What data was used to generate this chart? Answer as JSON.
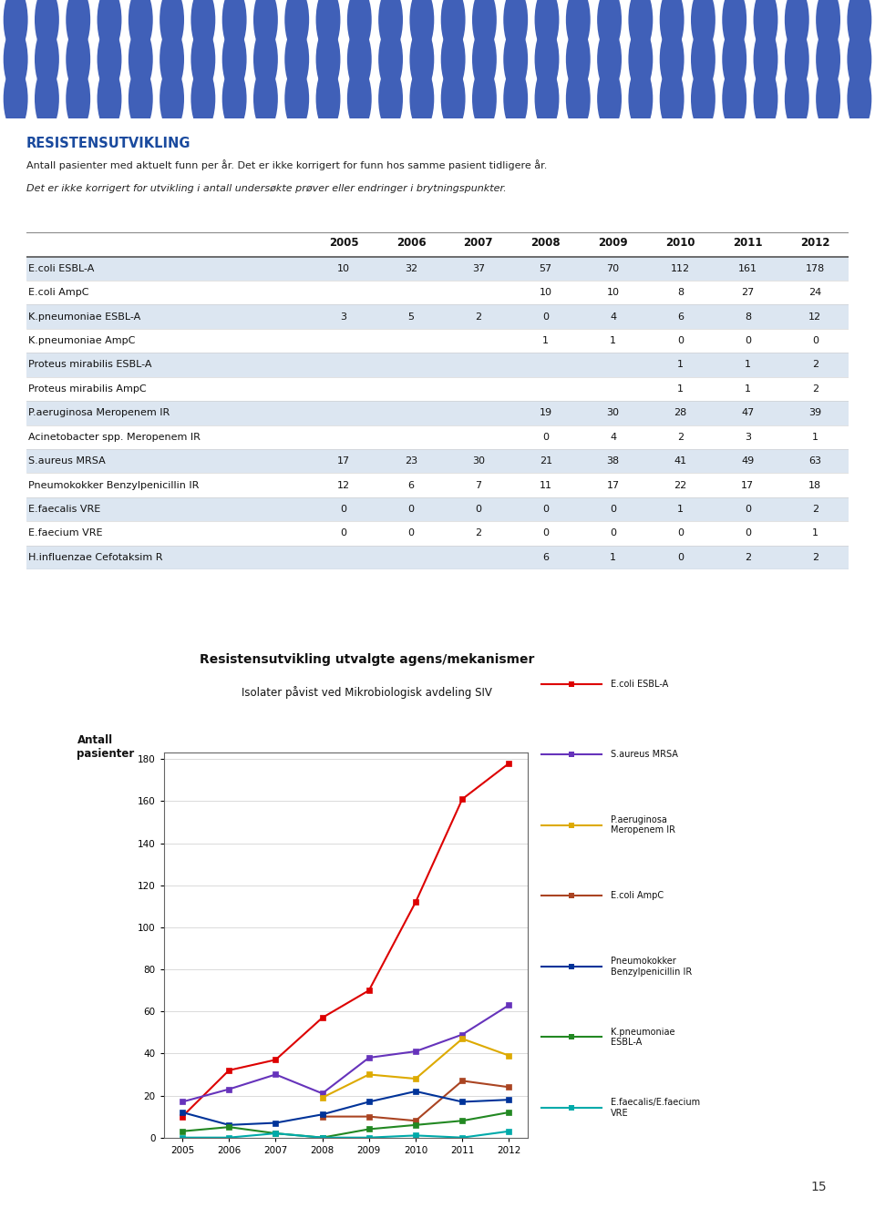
{
  "header_bg_color": "#1e4fa0",
  "dot_color": "#4060b8",
  "page_bg_color": "#ffffff",
  "title_text": "RESISTENSUTVIKLING",
  "title_color": "#1a4a9e",
  "subtitle1": "Antall pasienter med aktuelt funn per år. Det er ikke korrigert for funn hos samme pasient tidligere år.",
  "subtitle2": "Det er ikke korrigert for utvikling i antall undersøkte prøver eller endringer i brytningspunkter.",
  "years": [
    2005,
    2006,
    2007,
    2008,
    2009,
    2010,
    2011,
    2012
  ],
  "table_rows": [
    {
      "name": "E.coli ESBL-A",
      "shaded": true,
      "values": [
        10,
        32,
        37,
        57,
        70,
        112,
        161,
        178
      ]
    },
    {
      "name": "E.coli AmpC",
      "shaded": false,
      "values": [
        null,
        null,
        null,
        10,
        10,
        8,
        27,
        24
      ]
    },
    {
      "name": "K.pneumoniae ESBL-A",
      "shaded": true,
      "values": [
        3,
        5,
        2,
        0,
        4,
        6,
        8,
        12
      ]
    },
    {
      "name": "K.pneumoniae AmpC",
      "shaded": false,
      "values": [
        null,
        null,
        null,
        1,
        1,
        0,
        0,
        0
      ]
    },
    {
      "name": "Proteus mirabilis ESBL-A",
      "shaded": true,
      "values": [
        null,
        null,
        null,
        null,
        null,
        1,
        1,
        2
      ]
    },
    {
      "name": "Proteus mirabilis AmpC",
      "shaded": false,
      "values": [
        null,
        null,
        null,
        null,
        null,
        1,
        1,
        2
      ]
    },
    {
      "name": "P.aeruginosa Meropenem IR",
      "shaded": true,
      "values": [
        null,
        null,
        null,
        19,
        30,
        28,
        47,
        39
      ]
    },
    {
      "name": "Acinetobacter spp. Meropenem IR",
      "shaded": false,
      "values": [
        null,
        null,
        null,
        0,
        4,
        2,
        3,
        1
      ]
    },
    {
      "name": "S.aureus MRSA",
      "shaded": true,
      "values": [
        17,
        23,
        30,
        21,
        38,
        41,
        49,
        63
      ]
    },
    {
      "name": "Pneumokokker Benzylpenicillin IR",
      "shaded": false,
      "values": [
        12,
        6,
        7,
        11,
        17,
        22,
        17,
        18
      ]
    },
    {
      "name": "E.faecalis VRE",
      "shaded": true,
      "values": [
        0,
        0,
        0,
        0,
        0,
        1,
        0,
        2
      ]
    },
    {
      "name": "E.faecium VRE",
      "shaded": false,
      "values": [
        0,
        0,
        2,
        0,
        0,
        0,
        0,
        1
      ]
    },
    {
      "name": "H.influenzae Cefotaksim R",
      "shaded": true,
      "values": [
        null,
        null,
        null,
        6,
        1,
        0,
        2,
        2
      ]
    }
  ],
  "chart_title": "Resistensutvikling utvalgte agens/mekanismer",
  "chart_subtitle": "Isolater påvist ved Mikrobiologisk avdeling SIV",
  "chart_series": [
    {
      "name": "E.coli ESBL-A",
      "color": "#dd0000",
      "marker": "s",
      "years": [
        2005,
        2006,
        2007,
        2008,
        2009,
        2010,
        2011,
        2012
      ],
      "values": [
        10,
        32,
        37,
        57,
        70,
        112,
        161,
        178
      ]
    },
    {
      "name": "S.aureus MRSA",
      "color": "#6633bb",
      "marker": "s",
      "years": [
        2005,
        2006,
        2007,
        2008,
        2009,
        2010,
        2011,
        2012
      ],
      "values": [
        17,
        23,
        30,
        21,
        38,
        41,
        49,
        63
      ]
    },
    {
      "name": "P.aeruginosa\nMeropenem IR",
      "color": "#ddaa00",
      "marker": "s",
      "years": [
        2008,
        2009,
        2010,
        2011,
        2012
      ],
      "values": [
        19,
        30,
        28,
        47,
        39
      ]
    },
    {
      "name": "E.coli AmpC",
      "color": "#aa4422",
      "marker": "s",
      "years": [
        2008,
        2009,
        2010,
        2011,
        2012
      ],
      "values": [
        10,
        10,
        8,
        27,
        24
      ]
    },
    {
      "name": "Pneumokokker\nBenzylpenicillin IR",
      "color": "#003399",
      "marker": "s",
      "years": [
        2005,
        2006,
        2007,
        2008,
        2009,
        2010,
        2011,
        2012
      ],
      "values": [
        12,
        6,
        7,
        11,
        17,
        22,
        17,
        18
      ]
    },
    {
      "name": "K.pneumoniae\nESBL-A",
      "color": "#228822",
      "marker": "s",
      "years": [
        2005,
        2006,
        2007,
        2008,
        2009,
        2010,
        2011,
        2012
      ],
      "values": [
        3,
        5,
        2,
        0,
        4,
        6,
        8,
        12
      ]
    },
    {
      "name": "E.faecalis/E.faecium\nVRE",
      "color": "#00aaaa",
      "marker": "s",
      "years": [
        2005,
        2006,
        2007,
        2008,
        2009,
        2010,
        2011,
        2012
      ],
      "values": [
        0,
        0,
        2,
        0,
        0,
        1,
        0,
        3
      ]
    }
  ],
  "shaded_row_color": "#dce6f1",
  "page_number": "15",
  "chart_border_color": "#cc0000"
}
